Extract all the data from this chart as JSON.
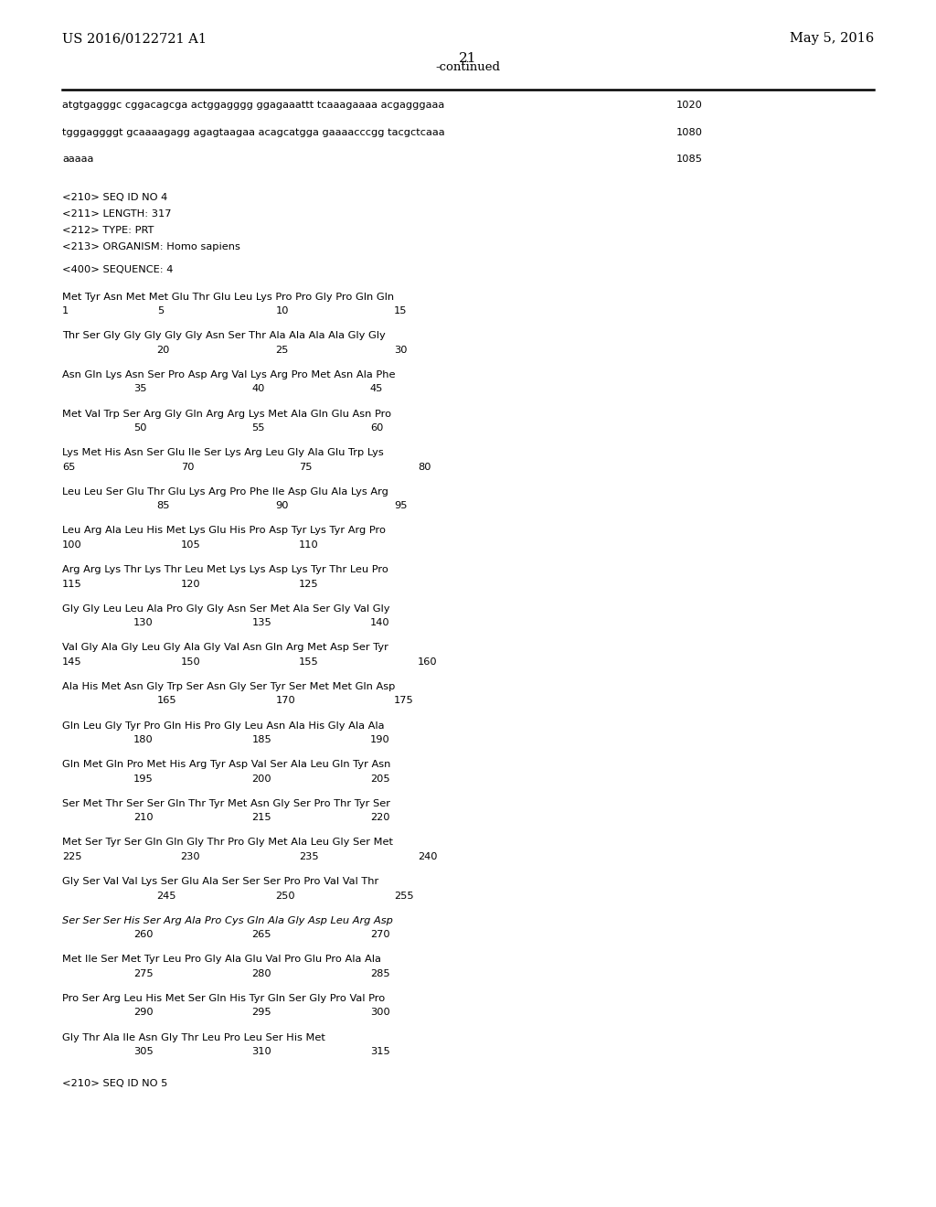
{
  "header_left": "US 2016/0122721 A1",
  "header_right": "May 5, 2016",
  "page_number": "21",
  "continued": "-continued",
  "background_color": "#ffffff",
  "text_color": "#000000",
  "seq_lines": [
    {
      "text": "atgtgagggc cggacagcga actggagggg ggagaaattt tcaaagaaaa acgagggaaa",
      "number": "1020"
    },
    {
      "text": "tgggaggggt gcaaaagagg agagtaagaa acagcatgga gaaaacccgg tacgctcaaa",
      "number": "1080"
    },
    {
      "text": "aaaaa",
      "number": "1085"
    }
  ],
  "meta_lines": [
    "<210> SEQ ID NO 4",
    "<211> LENGTH: 317",
    "<212> TYPE: PRT",
    "<213> ORGANISM: Homo sapiens"
  ],
  "sequence_header": "<400> SEQUENCE: 4",
  "aa_blocks": [
    {
      "aa": "Met Tyr Asn Met Met Glu Thr Glu Leu Lys Pro Pro Gly Pro Gln Gln",
      "nums": [
        [
          "1",
          0
        ],
        [
          "5",
          4
        ],
        [
          "10",
          9
        ],
        [
          "15",
          14
        ]
      ]
    },
    {
      "aa": "Thr Ser Gly Gly Gly Gly Gly Asn Ser Thr Ala Ala Ala Ala Gly Gly",
      "nums": [
        [
          "20",
          4
        ],
        [
          "25",
          9
        ],
        [
          "30",
          14
        ]
      ]
    },
    {
      "aa": "Asn Gln Lys Asn Ser Pro Asp Arg Val Lys Arg Pro Met Asn Ala Phe",
      "nums": [
        [
          "35",
          3
        ],
        [
          "40",
          8
        ],
        [
          "45",
          13
        ]
      ]
    },
    {
      "aa": "Met Val Trp Ser Arg Gly Gln Arg Arg Lys Met Ala Gln Glu Asn Pro",
      "nums": [
        [
          "50",
          3
        ],
        [
          "55",
          8
        ],
        [
          "60",
          13
        ]
      ]
    },
    {
      "aa": "Lys Met His Asn Ser Glu Ile Ser Lys Arg Leu Gly Ala Glu Trp Lys",
      "nums": [
        [
          "65",
          0
        ],
        [
          "70",
          5
        ],
        [
          "75",
          10
        ],
        [
          "80",
          15
        ]
      ]
    },
    {
      "aa": "Leu Leu Ser Glu Thr Glu Lys Arg Pro Phe Ile Asp Glu Ala Lys Arg",
      "nums": [
        [
          "85",
          4
        ],
        [
          "90",
          9
        ],
        [
          "95",
          14
        ]
      ]
    },
    {
      "aa": "Leu Arg Ala Leu His Met Lys Glu His Pro Asp Tyr Lys Tyr Arg Pro",
      "nums": [
        [
          "100",
          0
        ],
        [
          "105",
          5
        ],
        [
          "110",
          10
        ]
      ]
    },
    {
      "aa": "Arg Arg Lys Thr Lys Thr Leu Met Lys Lys Asp Lys Tyr Thr Leu Pro",
      "nums": [
        [
          "115",
          0
        ],
        [
          "120",
          5
        ],
        [
          "125",
          10
        ]
      ]
    },
    {
      "aa": "Gly Gly Leu Leu Ala Pro Gly Gly Asn Ser Met Ala Ser Gly Val Gly",
      "nums": [
        [
          "130",
          3
        ],
        [
          "135",
          8
        ],
        [
          "140",
          13
        ]
      ]
    },
    {
      "aa": "Val Gly Ala Gly Leu Gly Ala Gly Val Asn Gln Arg Met Asp Ser Tyr",
      "nums": [
        [
          "145",
          0
        ],
        [
          "150",
          5
        ],
        [
          "155",
          10
        ],
        [
          "160",
          15
        ]
      ]
    },
    {
      "aa": "Ala His Met Asn Gly Trp Ser Asn Gly Ser Tyr Ser Met Met Gln Asp",
      "nums": [
        [
          "165",
          4
        ],
        [
          "170",
          9
        ],
        [
          "175",
          14
        ]
      ]
    },
    {
      "aa": "Gln Leu Gly Tyr Pro Gln His Pro Gly Leu Asn Ala His Gly Ala Ala",
      "nums": [
        [
          "180",
          3
        ],
        [
          "185",
          8
        ],
        [
          "190",
          13
        ]
      ]
    },
    {
      "aa": "Gln Met Gln Pro Met His Arg Tyr Asp Val Ser Ala Leu Gln Tyr Asn",
      "nums": [
        [
          "195",
          3
        ],
        [
          "200",
          8
        ],
        [
          "205",
          13
        ]
      ]
    },
    {
      "aa": "Ser Met Thr Ser Ser Gln Thr Tyr Met Asn Gly Ser Pro Thr Tyr Ser",
      "nums": [
        [
          "210",
          3
        ],
        [
          "215",
          8
        ],
        [
          "220",
          13
        ]
      ]
    },
    {
      "aa": "Met Ser Tyr Ser Gln Gln Gly Thr Pro Gly Met Ala Leu Gly Ser Met",
      "nums": [
        [
          "225",
          0
        ],
        [
          "230",
          5
        ],
        [
          "235",
          10
        ],
        [
          "240",
          15
        ]
      ]
    },
    {
      "aa": "Gly Ser Val Val Lys Ser Glu Ala Ser Ser Ser Pro Pro Val Val Thr",
      "nums": [
        [
          "245",
          4
        ],
        [
          "250",
          9
        ],
        [
          "255",
          14
        ]
      ]
    },
    {
      "aa": "Ser Ser Ser His Ser Arg Ala Pro Cys Gln Ala Gly Asp Leu Arg Asp",
      "nums": [
        [
          "260",
          3
        ],
        [
          "265",
          8
        ],
        [
          "270",
          13
        ]
      ],
      "italic": true
    },
    {
      "aa": "Met Ile Ser Met Tyr Leu Pro Gly Ala Glu Val Pro Glu Pro Ala Ala",
      "nums": [
        [
          "275",
          3
        ],
        [
          "280",
          8
        ],
        [
          "285",
          13
        ]
      ]
    },
    {
      "aa": "Pro Ser Arg Leu His Met Ser Gln His Tyr Gln Ser Gly Pro Val Pro",
      "nums": [
        [
          "290",
          3
        ],
        [
          "295",
          8
        ],
        [
          "300",
          13
        ]
      ]
    },
    {
      "aa": "Gly Thr Ala Ile Asn Gly Thr Leu Pro Leu Ser His Met",
      "nums": [
        [
          "305",
          3
        ],
        [
          "310",
          8
        ],
        [
          "315",
          13
        ]
      ]
    }
  ],
  "footer_meta": "<210> SEQ ID NO 5"
}
